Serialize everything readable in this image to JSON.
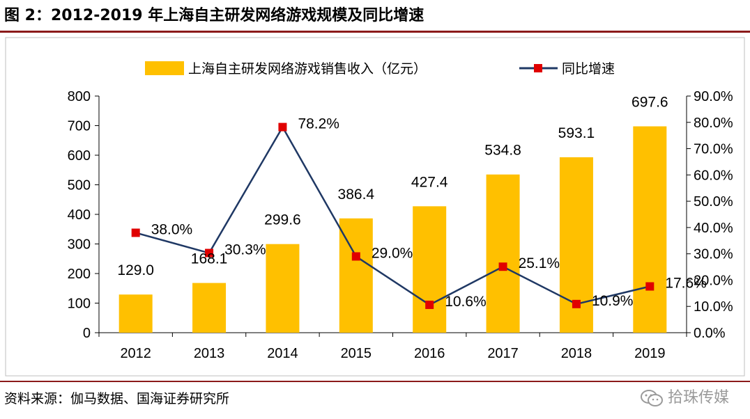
{
  "figure": {
    "title": "图 2：2012-2019 年上海自主研发网络游戏规模及同比增速",
    "source": "资料来源：伽马数据、国海证券研究所",
    "watermark": "拾珠传媒"
  },
  "colors": {
    "bar": "#FFC000",
    "line": "#1F3864",
    "marker": "#E00000",
    "rule": "#8B1A1A",
    "axis": "#000000"
  },
  "chart_data": {
    "type": "bar",
    "categories": [
      "2012",
      "2013",
      "2014",
      "2015",
      "2016",
      "2017",
      "2018",
      "2019"
    ],
    "series": [
      {
        "name": "上海自主研发网络游戏销售收入（亿元）",
        "type": "bar",
        "axis": "left",
        "values": [
          129.0,
          168.1,
          299.6,
          386.4,
          427.4,
          534.8,
          593.1,
          697.6
        ],
        "labels": [
          "129.0",
          "168.1",
          "299.6",
          "386.4",
          "427.4",
          "534.8",
          "593.1",
          "697.6"
        ]
      },
      {
        "name": "同比增速",
        "type": "line",
        "axis": "right",
        "values": [
          38.0,
          30.3,
          78.2,
          29.0,
          10.6,
          25.1,
          10.9,
          17.6
        ],
        "labels": [
          "38.0%",
          "30.3%",
          "78.2%",
          "29.0%",
          "10.6%",
          "25.1%",
          "10.9%",
          "17.6%"
        ]
      }
    ],
    "y_left": {
      "min": 0,
      "max": 800,
      "ticks": [
        "0",
        "100",
        "200",
        "300",
        "400",
        "500",
        "600",
        "700",
        "800"
      ]
    },
    "y_right": {
      "min": 0,
      "max": 90,
      "ticks": [
        "0.0%",
        "10.0%",
        "20.0%",
        "30.0%",
        "40.0%",
        "50.0%",
        "60.0%",
        "70.0%",
        "80.0%",
        "90.0%"
      ]
    },
    "legend_position": "top",
    "grid": false
  }
}
